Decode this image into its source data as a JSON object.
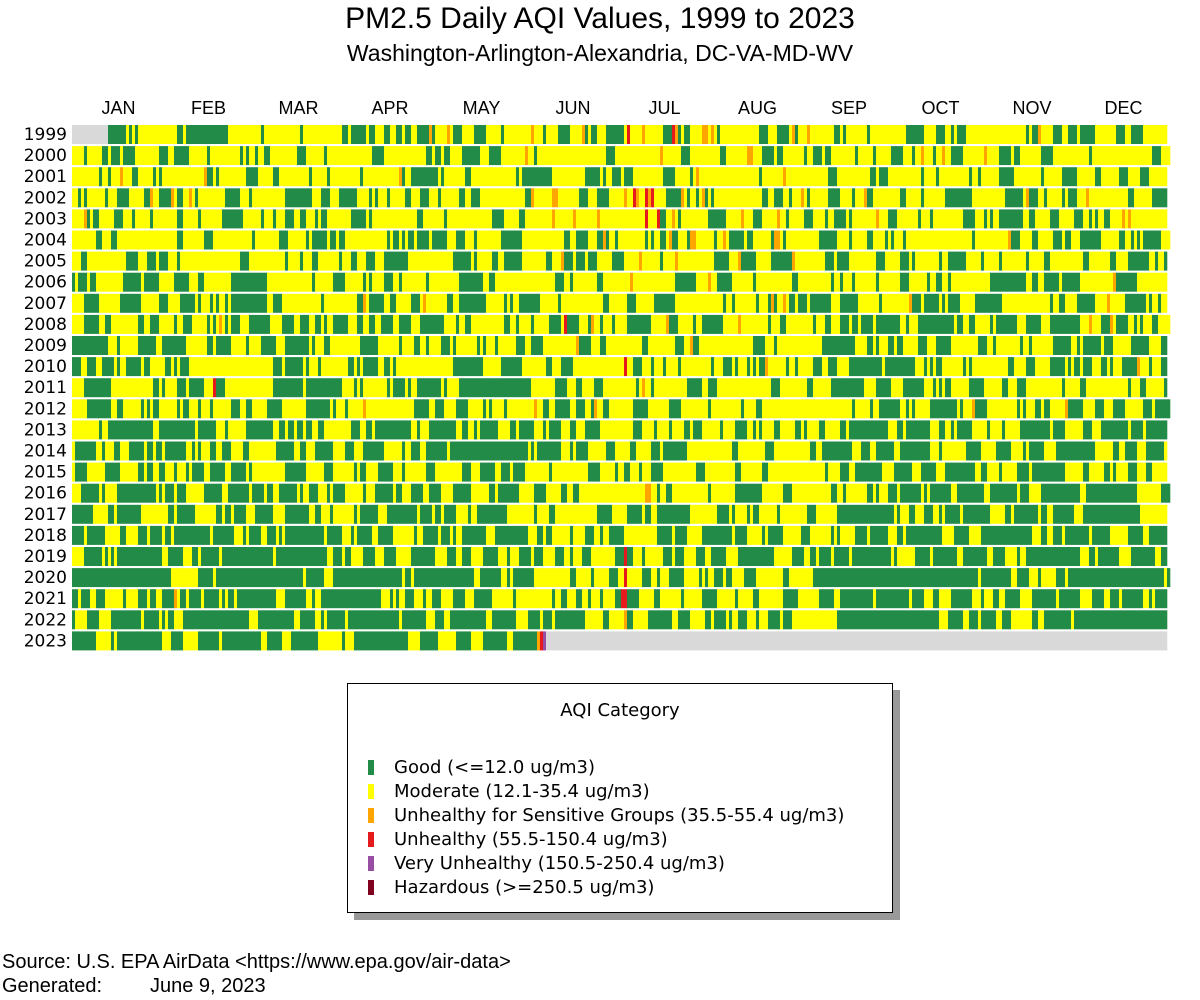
{
  "chart_data": {
    "type": "heatmap",
    "title": "PM2.5 Daily AQI Values, 1999 to 2023",
    "subtitle": "Washington-Arlington-Alexandria, DC-VA-MD-WV",
    "xlabel": "",
    "ylabel": "",
    "x_tick_labels": [
      "JAN",
      "FEB",
      "MAR",
      "APR",
      "MAY",
      "JUN",
      "JUL",
      "AUG",
      "SEP",
      "OCT",
      "NOV",
      "DEC"
    ],
    "y_tick_labels": [
      "1999",
      "2000",
      "2001",
      "2002",
      "2003",
      "2004",
      "2005",
      "2006",
      "2007",
      "2008",
      "2009",
      "2010",
      "2011",
      "2012",
      "2013",
      "2014",
      "2015",
      "2016",
      "2017",
      "2018",
      "2019",
      "2020",
      "2021",
      "2022",
      "2023"
    ],
    "x_unit": "day of year",
    "days_per_row": 366,
    "categories": [
      {
        "key": "good",
        "label": "Good (<=12.0 ug/m3)",
        "color": "#228B47"
      },
      {
        "key": "moderate",
        "label": "Moderate (12.1-35.4 ug/m3)",
        "color": "#FFFF00"
      },
      {
        "key": "usg",
        "label": "Unhealthy for Sensitive Groups (35.5-55.4 ug/m3)",
        "color": "#FFA500"
      },
      {
        "key": "unhealthy",
        "label": "Unhealthy (55.5-150.4 ug/m3)",
        "color": "#E41A1C"
      },
      {
        "key": "very_unhealthy",
        "label": "Very Unhealthy (150.5-250.4 ug/m3)",
        "color": "#984EA3"
      },
      {
        "key": "hazardous",
        "label": "Hazardous (>=250.5 ug/m3)",
        "color": "#800020"
      },
      {
        "key": "no_data",
        "label": "No data",
        "color": "#D9D9D9"
      }
    ],
    "approx_good_share_by_year": {
      "1999": 0.3,
      "2000": 0.28,
      "2001": 0.25,
      "2002": 0.25,
      "2003": 0.3,
      "2004": 0.32,
      "2005": 0.28,
      "2006": 0.33,
      "2007": 0.35,
      "2008": 0.4,
      "2009": 0.42,
      "2010": 0.42,
      "2011": 0.42,
      "2012": 0.38,
      "2013": 0.5,
      "2014": 0.5,
      "2015": 0.5,
      "2016": 0.55,
      "2017": 0.55,
      "2018": 0.58,
      "2019": 0.65,
      "2020": 0.72,
      "2021": 0.62,
      "2022": 0.7,
      "2023": 0.7
    },
    "approx_usg_share_by_year": {
      "1999": 0.05,
      "2000": 0.04,
      "2001": 0.05,
      "2002": 0.06,
      "2003": 0.04,
      "2004": 0.03,
      "2005": 0.05,
      "2006": 0.03,
      "2007": 0.03,
      "2008": 0.02,
      "2009": 0.01,
      "2010": 0.01,
      "2011": 0.01,
      "2012": 0.01,
      "2013": 0.0,
      "2014": 0.0,
      "2015": 0.0,
      "2016": 0.003,
      "2017": 0.0,
      "2018": 0.0,
      "2019": 0.0,
      "2020": 0.0,
      "2021": 0.003,
      "2022": 0.0,
      "2023": 0.0
    },
    "notable_days": [
      {
        "year": "1999",
        "day": 1,
        "category": "no_data",
        "span": 12
      },
      {
        "year": "1999",
        "day": 186,
        "category": "unhealthy"
      },
      {
        "year": "1999",
        "day": 201,
        "category": "unhealthy"
      },
      {
        "year": "2002",
        "day": 188,
        "category": "unhealthy"
      },
      {
        "year": "2002",
        "day": 192,
        "category": "unhealthy"
      },
      {
        "year": "2002",
        "day": 194,
        "category": "unhealthy"
      },
      {
        "year": "2003",
        "day": 192,
        "category": "unhealthy"
      },
      {
        "year": "2003",
        "day": 196,
        "category": "unhealthy"
      },
      {
        "year": "2008",
        "day": 165,
        "category": "unhealthy"
      },
      {
        "year": "2010",
        "day": 185,
        "category": "unhealthy"
      },
      {
        "year": "2011",
        "day": 48,
        "category": "unhealthy"
      },
      {
        "year": "2019",
        "day": 185,
        "category": "unhealthy"
      },
      {
        "year": "2020",
        "day": 185,
        "category": "unhealthy"
      },
      {
        "year": "2021",
        "day": 184,
        "category": "unhealthy"
      },
      {
        "year": "2021",
        "day": 185,
        "category": "unhealthy"
      },
      {
        "year": "2022",
        "day": 185,
        "category": "usg"
      },
      {
        "year": "2023",
        "day": 156,
        "category": "usg"
      },
      {
        "year": "2023",
        "day": 157,
        "category": "unhealthy"
      },
      {
        "year": "2023",
        "day": 158,
        "category": "very_unhealthy"
      }
    ],
    "last_day_with_data": {
      "year": "2023",
      "day": 158
    }
  },
  "legend": {
    "title": "AQI Category",
    "items": [
      {
        "label": "Good (<=12.0 ug/m3)",
        "color": "#228B47"
      },
      {
        "label": "Moderate (12.1-35.4 ug/m3)",
        "color": "#FFFF00"
      },
      {
        "label": "Unhealthy for Sensitive Groups (35.5-55.4 ug/m3)",
        "color": "#FFA500"
      },
      {
        "label": "Unhealthy (55.5-150.4 ug/m3)",
        "color": "#E41A1C"
      },
      {
        "label": "Very Unhealthy (150.5-250.4 ug/m3)",
        "color": "#984EA3"
      },
      {
        "label": "Hazardous (>=250.5 ug/m3)",
        "color": "#800020"
      }
    ]
  },
  "footer": {
    "source": "Source: U.S. EPA AirData <https://www.epa.gov/air-data>",
    "generated_label": "Generated:",
    "generated_date": "June 9, 2023"
  }
}
